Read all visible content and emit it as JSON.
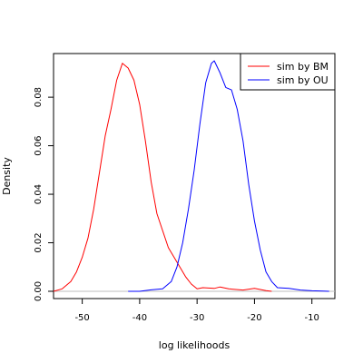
{
  "chart_data": {
    "type": "line",
    "title": "",
    "xlabel": "log likelihoods",
    "ylabel": "Density",
    "xlim": [
      -55,
      -6
    ],
    "ylim": [
      -0.003,
      0.098
    ],
    "xticks": [
      -50,
      -40,
      -30,
      -20,
      -10
    ],
    "yticks": [
      0.0,
      0.02,
      0.04,
      0.06,
      0.08
    ],
    "ytick_labels": [
      "0.00",
      "0.02",
      "0.04",
      "0.06",
      "0.08"
    ],
    "grid": false,
    "legend_position": "top-right",
    "series": [
      {
        "name": "sim by BM",
        "color": "#ff0000",
        "points": [
          [
            -55.0,
            0.0
          ],
          [
            -53.5,
            0.001
          ],
          [
            -52.0,
            0.004
          ],
          [
            -51.0,
            0.008
          ],
          [
            -50.0,
            0.014
          ],
          [
            -49.0,
            0.022
          ],
          [
            -48.0,
            0.034
          ],
          [
            -47.0,
            0.049
          ],
          [
            -46.0,
            0.064
          ],
          [
            -45.0,
            0.075
          ],
          [
            -44.0,
            0.087
          ],
          [
            -43.0,
            0.094
          ],
          [
            -42.0,
            0.092
          ],
          [
            -41.0,
            0.087
          ],
          [
            -40.0,
            0.077
          ],
          [
            -39.0,
            0.062
          ],
          [
            -38.0,
            0.045
          ],
          [
            -37.0,
            0.032
          ],
          [
            -36.0,
            0.025
          ],
          [
            -35.0,
            0.018
          ],
          [
            -34.0,
            0.014
          ],
          [
            -33.0,
            0.01
          ],
          [
            -32.0,
            0.006
          ],
          [
            -31.0,
            0.003
          ],
          [
            -30.0,
            0.001
          ],
          [
            -29.0,
            0.0015
          ],
          [
            -27.0,
            0.0012
          ],
          [
            -26.0,
            0.0018
          ],
          [
            -24.5,
            0.001
          ],
          [
            -22.0,
            0.0005
          ],
          [
            -20.0,
            0.0012
          ],
          [
            -18.0,
            0.0003
          ],
          [
            -17.0,
            0.0
          ]
        ]
      },
      {
        "name": "sim by OU",
        "color": "#0000ff",
        "points": [
          [
            -42.0,
            0.0
          ],
          [
            -40.0,
            0.0
          ],
          [
            -38.0,
            0.0006
          ],
          [
            -36.0,
            0.001
          ],
          [
            -34.5,
            0.004
          ],
          [
            -33.5,
            0.01
          ],
          [
            -32.5,
            0.02
          ],
          [
            -31.5,
            0.034
          ],
          [
            -30.5,
            0.05
          ],
          [
            -29.5,
            0.069
          ],
          [
            -28.5,
            0.086
          ],
          [
            -27.5,
            0.094
          ],
          [
            -27.0,
            0.095
          ],
          [
            -26.0,
            0.09
          ],
          [
            -25.0,
            0.084
          ],
          [
            -24.0,
            0.083
          ],
          [
            -23.0,
            0.075
          ],
          [
            -22.0,
            0.062
          ],
          [
            -21.0,
            0.044
          ],
          [
            -20.0,
            0.029
          ],
          [
            -19.0,
            0.017
          ],
          [
            -18.0,
            0.008
          ],
          [
            -17.0,
            0.004
          ],
          [
            -16.0,
            0.0015
          ],
          [
            -14.0,
            0.0012
          ],
          [
            -12.0,
            0.0005
          ],
          [
            -10.0,
            0.0002
          ],
          [
            -8.0,
            0.0001
          ],
          [
            -7.0,
            0.0
          ]
        ]
      }
    ]
  }
}
